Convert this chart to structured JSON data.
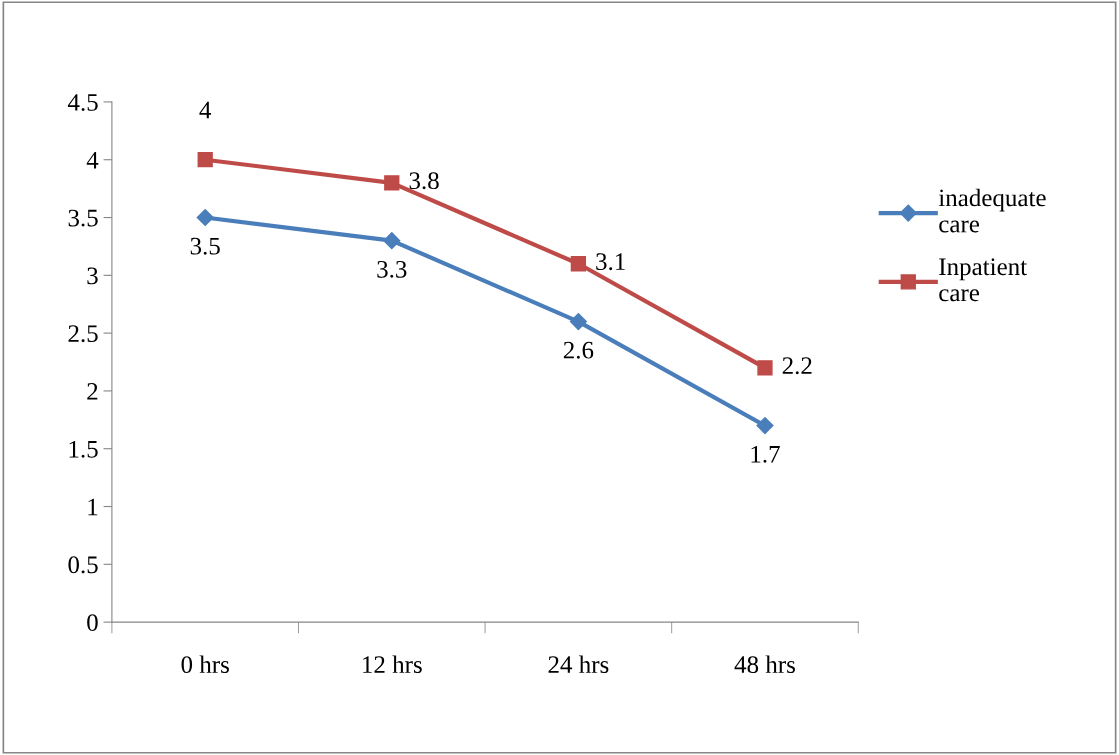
{
  "chart_data": {
    "type": "line",
    "categories": [
      "0 hrs",
      "12 hrs",
      "24 hrs",
      "48 hrs"
    ],
    "series": [
      {
        "name": "inadequate care",
        "color": "#4a7ebb",
        "marker": "diamond",
        "values": [
          3.5,
          3.3,
          2.6,
          1.7
        ]
      },
      {
        "name": "Inpatient care",
        "color": "#be4b48",
        "marker": "square",
        "values": [
          4,
          3.8,
          3.1,
          2.2
        ]
      }
    ],
    "ylim": [
      0,
      4.5
    ],
    "yticks": [
      0,
      0.5,
      1,
      1.5,
      2,
      2.5,
      3,
      3.5,
      4,
      4.5
    ],
    "data_labels": true,
    "legend": "right",
    "grid": false
  }
}
